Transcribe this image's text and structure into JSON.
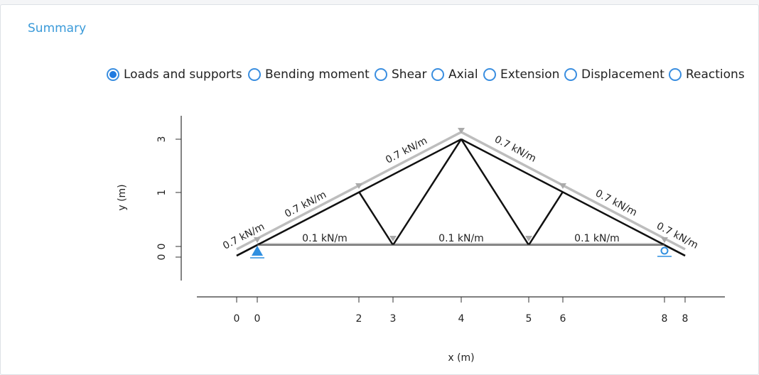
{
  "header": {
    "title": "Summary"
  },
  "view_options": {
    "selected": 0,
    "options": [
      "Loads and supports",
      "Bending moment",
      "Shear",
      "Axial",
      "Extension",
      "Displacement",
      "Reactions"
    ]
  },
  "diagram": {
    "x_axis": {
      "label": "x (m)",
      "ticks": [
        "0",
        "0",
        "2",
        "3",
        "4",
        "5",
        "6",
        "8",
        "8"
      ]
    },
    "y_axis": {
      "label": "y (m)",
      "ticks": [
        "3",
        "1",
        "0",
        "0"
      ]
    },
    "member_loads": [
      "0.7 kN/m",
      "0.7 kN/m",
      "0.7 kN/m",
      "0.7 kN/m",
      "0.7 kN/m",
      "0.7 kN/m"
    ],
    "chord_loads": [
      "0.1 kN/m",
      "0.1 kN/m",
      "0.1 kN/m"
    ]
  }
}
